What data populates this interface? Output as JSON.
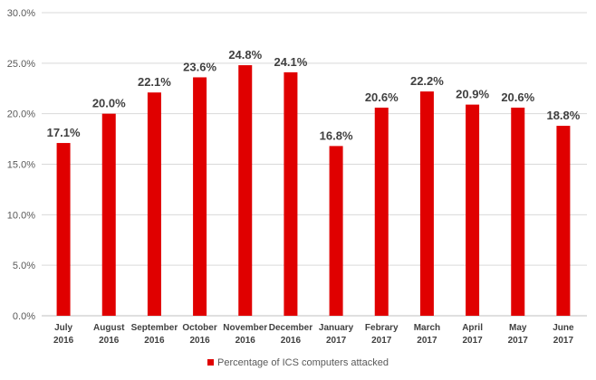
{
  "chart_data": {
    "type": "bar",
    "categories": [
      [
        "July",
        "2016"
      ],
      [
        "August",
        "2016"
      ],
      [
        "September",
        "2016"
      ],
      [
        "October",
        "2016"
      ],
      [
        "November",
        "2016"
      ],
      [
        "December",
        "2016"
      ],
      [
        "January",
        "2017"
      ],
      [
        "Febrary",
        "2017"
      ],
      [
        "March",
        "2017"
      ],
      [
        "April",
        "2017"
      ],
      [
        "May",
        "2017"
      ],
      [
        "June",
        "2017"
      ]
    ],
    "series": [
      {
        "name": "Percentage of ICS computers attacked",
        "values": [
          17.1,
          20.0,
          22.1,
          23.6,
          24.8,
          24.1,
          16.8,
          20.6,
          22.2,
          20.9,
          20.6,
          18.8
        ],
        "labels": [
          "17.1%",
          "20.0%",
          "22.1%",
          "23.6%",
          "24.8%",
          "24.1%",
          "16.8%",
          "20.6%",
          "22.2%",
          "20.9%",
          "20.6%",
          "18.8%"
        ],
        "color": "#e00000"
      }
    ],
    "ylim": [
      0,
      30
    ],
    "yticks": [
      0,
      5,
      10,
      15,
      20,
      25,
      30
    ],
    "ytick_labels": [
      "0.0%",
      "5.0%",
      "10.0%",
      "15.0%",
      "20.0%",
      "25.0%",
      "30.0%"
    ],
    "grid": true,
    "legend_position": "bottom",
    "title": "",
    "xlabel": "",
    "ylabel": ""
  },
  "legend": {
    "label": "Percentage of ICS computers attacked",
    "color": "#e00000"
  }
}
